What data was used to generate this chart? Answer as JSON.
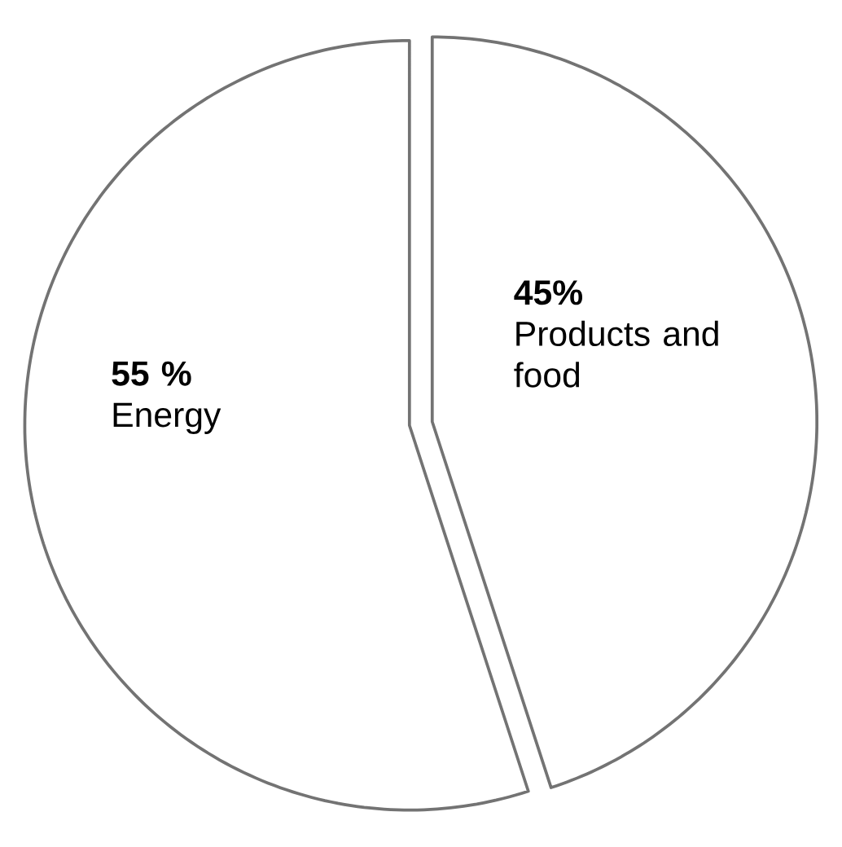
{
  "chart_data": {
    "type": "pie",
    "categories": [
      "Energy",
      "Products and food"
    ],
    "values": [
      55,
      45
    ],
    "value_labels": [
      "55 %",
      "45%"
    ],
    "colors": [
      "#ffffff",
      "#ffffff"
    ]
  }
}
